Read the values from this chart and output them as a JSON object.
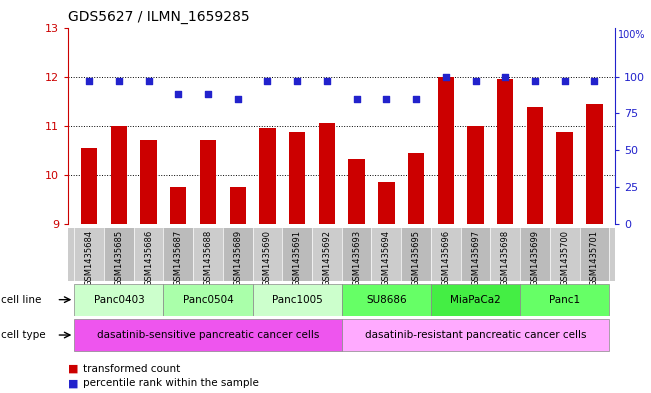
{
  "title": "GDS5627 / ILMN_1659285",
  "samples": [
    "GSM1435684",
    "GSM1435685",
    "GSM1435686",
    "GSM1435687",
    "GSM1435688",
    "GSM1435689",
    "GSM1435690",
    "GSM1435691",
    "GSM1435692",
    "GSM1435693",
    "GSM1435694",
    "GSM1435695",
    "GSM1435696",
    "GSM1435697",
    "GSM1435698",
    "GSM1435699",
    "GSM1435700",
    "GSM1435701"
  ],
  "bar_values": [
    10.55,
    11.0,
    10.7,
    9.75,
    10.7,
    9.75,
    10.95,
    10.88,
    11.05,
    10.32,
    9.85,
    10.45,
    12.0,
    11.0,
    11.95,
    11.38,
    10.88,
    11.45
  ],
  "percentile_values": [
    97,
    97,
    97,
    88,
    88,
    85,
    97,
    97,
    97,
    85,
    85,
    85,
    100,
    97,
    100,
    97,
    97,
    97
  ],
  "ylim_left": [
    9,
    13
  ],
  "yticks_left": [
    9,
    10,
    11,
    12,
    13
  ],
  "yticks_right": [
    0,
    25,
    50,
    75,
    100
  ],
  "ylim_right": [
    0,
    133.33
  ],
  "bar_color": "#cc0000",
  "dot_color": "#2222cc",
  "dot_size": 16,
  "bar_width": 0.55,
  "cell_line_groups": [
    {
      "label": "Panc0403",
      "start": 0,
      "end": 2,
      "color": "#ccffcc"
    },
    {
      "label": "Panc0504",
      "start": 3,
      "end": 5,
      "color": "#aaffaa"
    },
    {
      "label": "Panc1005",
      "start": 6,
      "end": 8,
      "color": "#ccffcc"
    },
    {
      "label": "SU8686",
      "start": 9,
      "end": 11,
      "color": "#66ff66"
    },
    {
      "label": "MiaPaCa2",
      "start": 12,
      "end": 14,
      "color": "#44ee44"
    },
    {
      "label": "Panc1",
      "start": 15,
      "end": 17,
      "color": "#66ff66"
    }
  ],
  "cell_type_groups": [
    {
      "label": "dasatinib-sensitive pancreatic cancer cells",
      "start": 0,
      "end": 8,
      "color": "#ee55ee"
    },
    {
      "label": "dasatinib-resistant pancreatic cancer cells",
      "start": 9,
      "end": 17,
      "color": "#ffaaff"
    }
  ],
  "tick_color_left": "#cc0000",
  "tick_color_right": "#2222cc",
  "xlabel_bg": "#cccccc",
  "xlabel_bg2": "#bbbbbb"
}
